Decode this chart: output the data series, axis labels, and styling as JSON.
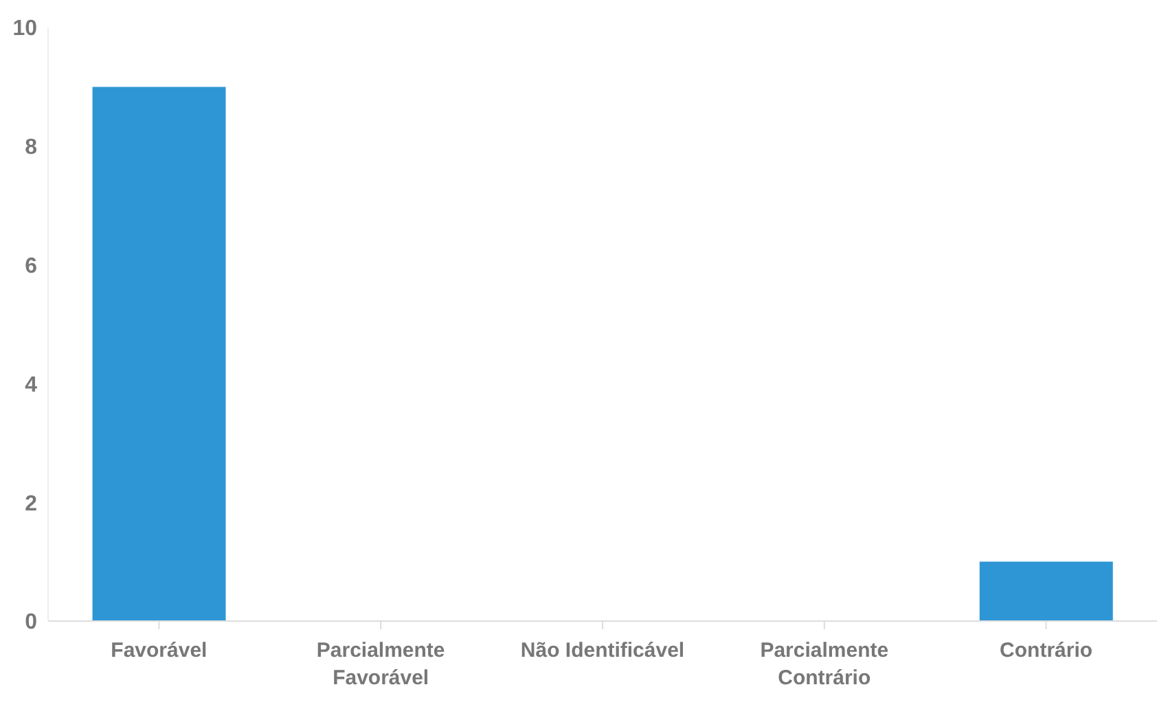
{
  "chart_data": {
    "type": "bar",
    "categories": [
      "Favorável",
      "Parcialmente Favorável",
      "Não Identificável",
      "Parcialmente Contrário",
      "Contrário"
    ],
    "values": [
      9,
      0,
      0,
      0,
      1
    ],
    "color": "#2f96d5",
    "ylim": [
      0,
      10
    ],
    "yticks": [
      0,
      2,
      4,
      6,
      8,
      10
    ],
    "grid": false
  }
}
